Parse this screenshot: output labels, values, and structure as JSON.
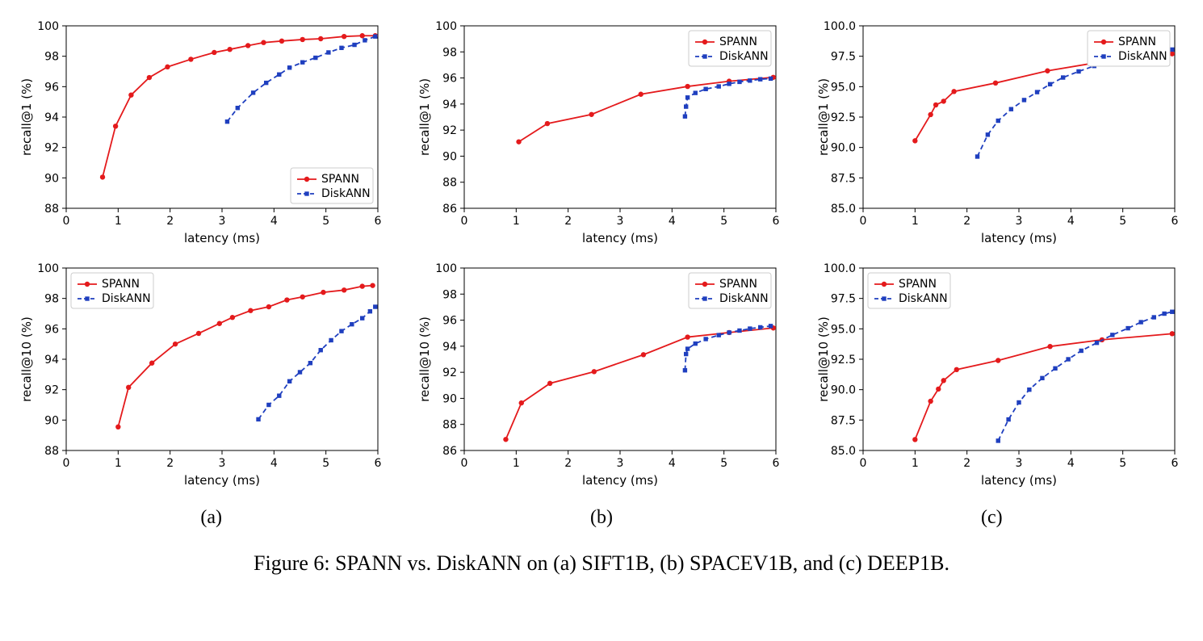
{
  "caption": "Figure 6: SPANN vs. DiskANN on (a) SIFT1B, (b) SPACEV1B, and (c) DEEP1B.",
  "sub_labels": [
    "(a)",
    "(b)",
    "(c)"
  ],
  "legend_labels": {
    "spann": "SPANN",
    "diskann": "DiskANN"
  },
  "colors": {
    "spann": "#e41a1c",
    "diskann": "#1f3fbf",
    "axis": "#000000",
    "background": "#ffffff",
    "legend_border": "#cccccc"
  },
  "global": {
    "xlabel": "latency (ms)",
    "xlim": [
      0,
      6
    ],
    "xticks": [
      0,
      1,
      2,
      3,
      4,
      5,
      6
    ],
    "font_family": "DejaVu Sans",
    "tick_fontsize": 14,
    "label_fontsize": 15,
    "legend_fontsize": 14,
    "marker_radius_spann": 3.2,
    "marker_side_diskann": 5.4,
    "line_width": 1.8
  },
  "panels": [
    {
      "id": "a-top",
      "col": 0,
      "row": 0,
      "ylabel": "recall@1 (%)",
      "ylim": [
        88,
        100
      ],
      "yticks": [
        88,
        90,
        92,
        94,
        96,
        98,
        100
      ],
      "tick_decimals": 0,
      "legend_pos": "lower-right",
      "series": {
        "spann": {
          "x": [
            0.7,
            0.95,
            1.25,
            1.6,
            1.95,
            2.4,
            2.85,
            3.15,
            3.5,
            3.8,
            4.15,
            4.55,
            4.9,
            5.35,
            5.7,
            5.95
          ],
          "y": [
            90.05,
            93.4,
            95.45,
            96.6,
            97.3,
            97.8,
            98.25,
            98.45,
            98.7,
            98.9,
            99.0,
            99.1,
            99.15,
            99.3,
            99.35,
            99.35
          ]
        },
        "diskann": {
          "x": [
            3.1,
            3.3,
            3.6,
            3.85,
            4.1,
            4.3,
            4.55,
            4.8,
            5.05,
            5.3,
            5.55,
            5.75,
            5.95
          ],
          "y": [
            93.7,
            94.6,
            95.6,
            96.25,
            96.8,
            97.25,
            97.6,
            97.9,
            98.25,
            98.55,
            98.75,
            99.05,
            99.3
          ]
        }
      }
    },
    {
      "id": "b-top",
      "col": 1,
      "row": 0,
      "ylabel": "recall@1 (%)",
      "ylim": [
        86,
        100
      ],
      "yticks": [
        86,
        88,
        90,
        92,
        94,
        96,
        98,
        100
      ],
      "tick_decimals": 0,
      "legend_pos": "upper-right",
      "series": {
        "spann": {
          "x": [
            1.05,
            1.6,
            2.45,
            3.4,
            4.3,
            5.1,
            5.95
          ],
          "y": [
            91.1,
            92.5,
            93.2,
            94.75,
            95.35,
            95.75,
            96.05
          ]
        },
        "diskann": {
          "x": [
            4.25,
            4.27,
            4.3,
            4.45,
            4.65,
            4.9,
            5.1,
            5.3,
            5.5,
            5.7,
            5.9
          ],
          "y": [
            93.05,
            93.8,
            94.5,
            94.85,
            95.15,
            95.35,
            95.55,
            95.7,
            95.8,
            95.9,
            95.95
          ]
        }
      }
    },
    {
      "id": "c-top",
      "col": 2,
      "row": 0,
      "ylabel": "recall@1 (%)",
      "ylim": [
        85,
        100
      ],
      "yticks": [
        85.0,
        87.5,
        90.0,
        92.5,
        95.0,
        97.5,
        100.0
      ],
      "tick_decimals": 1,
      "legend_pos": "upper-right",
      "series": {
        "spann": {
          "x": [
            1.0,
            1.3,
            1.4,
            1.55,
            1.75,
            2.55,
            3.55,
            4.6,
            5.95
          ],
          "y": [
            90.55,
            92.7,
            93.5,
            93.8,
            94.6,
            95.3,
            96.3,
            97.05,
            97.7
          ]
        },
        "diskann": {
          "x": [
            2.2,
            2.4,
            2.6,
            2.85,
            3.1,
            3.35,
            3.6,
            3.85,
            4.15,
            4.45,
            4.8,
            5.1,
            5.4,
            5.7,
            5.95
          ],
          "y": [
            89.25,
            91.05,
            92.2,
            93.15,
            93.9,
            94.55,
            95.2,
            95.75,
            96.25,
            96.7,
            97.15,
            97.5,
            97.75,
            97.95,
            98.05
          ]
        }
      }
    },
    {
      "id": "a-bot",
      "col": 0,
      "row": 1,
      "ylabel": "recall@10 (%)",
      "ylim": [
        88,
        100
      ],
      "yticks": [
        88,
        90,
        92,
        94,
        96,
        98,
        100
      ],
      "tick_decimals": 0,
      "legend_pos": "upper-left",
      "series": {
        "spann": {
          "x": [
            1.0,
            1.2,
            1.65,
            2.1,
            2.55,
            2.95,
            3.2,
            3.55,
            3.9,
            4.25,
            4.55,
            4.95,
            5.35,
            5.7,
            5.9
          ],
          "y": [
            89.55,
            92.15,
            93.75,
            95.0,
            95.7,
            96.35,
            96.75,
            97.2,
            97.45,
            97.9,
            98.1,
            98.4,
            98.55,
            98.8,
            98.85
          ]
        },
        "diskann": {
          "x": [
            3.7,
            3.9,
            4.1,
            4.3,
            4.5,
            4.7,
            4.9,
            5.1,
            5.3,
            5.5,
            5.7,
            5.85,
            5.95
          ],
          "y": [
            90.05,
            91.0,
            91.6,
            92.55,
            93.15,
            93.75,
            94.6,
            95.25,
            95.85,
            96.3,
            96.7,
            97.15,
            97.45
          ]
        }
      }
    },
    {
      "id": "b-bot",
      "col": 1,
      "row": 1,
      "ylabel": "recall@10 (%)",
      "ylim": [
        86,
        100
      ],
      "yticks": [
        86,
        88,
        90,
        92,
        94,
        96,
        98,
        100
      ],
      "tick_decimals": 0,
      "legend_pos": "upper-right",
      "series": {
        "spann": {
          "x": [
            0.8,
            1.1,
            1.65,
            2.5,
            3.45,
            4.3,
            5.1,
            5.95
          ],
          "y": [
            86.85,
            89.65,
            91.15,
            92.05,
            93.35,
            94.7,
            95.05,
            95.4
          ]
        },
        "diskann": {
          "x": [
            4.25,
            4.27,
            4.3,
            4.45,
            4.65,
            4.9,
            5.1,
            5.3,
            5.5,
            5.7,
            5.9
          ],
          "y": [
            92.15,
            93.4,
            93.8,
            94.2,
            94.55,
            94.85,
            95.05,
            95.2,
            95.35,
            95.45,
            95.55
          ]
        }
      }
    },
    {
      "id": "c-bot",
      "col": 2,
      "row": 1,
      "ylabel": "recall@10 (%)",
      "ylim": [
        85,
        100
      ],
      "yticks": [
        85.0,
        87.5,
        90.0,
        92.5,
        95.0,
        97.5,
        100.0
      ],
      "tick_decimals": 1,
      "legend_pos": "upper-left",
      "series": {
        "spann": {
          "x": [
            1.0,
            1.3,
            1.45,
            1.55,
            1.8,
            2.6,
            3.6,
            4.6,
            5.95
          ],
          "y": [
            85.9,
            89.05,
            90.05,
            90.75,
            91.65,
            92.4,
            93.55,
            94.1,
            94.6
          ]
        },
        "diskann": {
          "x": [
            2.6,
            2.8,
            3.0,
            3.2,
            3.45,
            3.7,
            3.95,
            4.2,
            4.5,
            4.8,
            5.1,
            5.35,
            5.6,
            5.8,
            5.95
          ],
          "y": [
            85.8,
            87.55,
            88.95,
            90.0,
            90.95,
            91.75,
            92.5,
            93.2,
            93.85,
            94.5,
            95.05,
            95.55,
            95.95,
            96.25,
            96.4
          ]
        }
      }
    }
  ]
}
